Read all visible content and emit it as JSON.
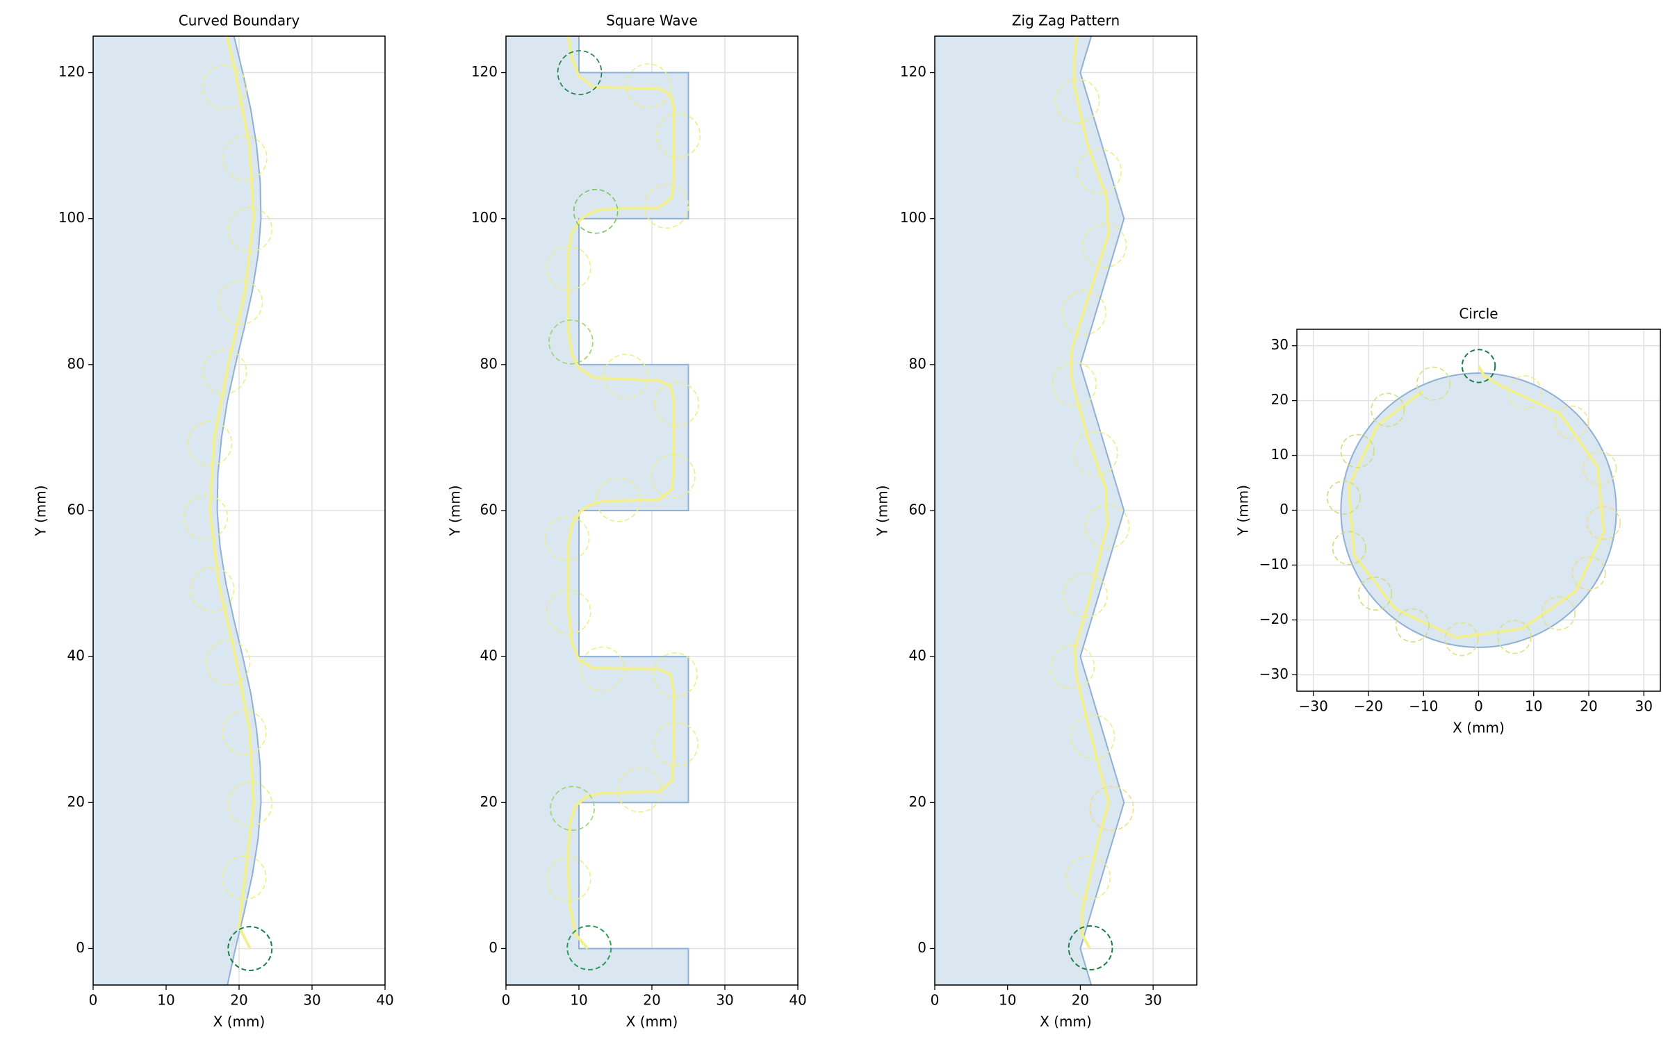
{
  "chart_data": [
    {
      "type": "toolpath",
      "title": "Curved Boundary",
      "x_label": "X (mm)",
      "y_label": "Y (mm)",
      "xlim": [
        0,
        40
      ],
      "ylim": [
        -5,
        125
      ],
      "xticks": [
        0,
        10,
        20,
        30,
        40
      ],
      "yticks": [
        0,
        20,
        40,
        60,
        80,
        100,
        120
      ],
      "grid": true,
      "boundary": {
        "color": "#dae6f0",
        "edge_color": "#8fb0d6",
        "x": [
          0,
          18.4,
          19.5,
          20.7,
          21.8,
          22.6,
          23.0,
          22.9,
          22.4,
          21.6,
          20.5,
          19.3,
          18.2,
          17.4,
          17.0,
          17.1,
          17.6,
          18.4,
          19.5,
          20.7,
          21.8,
          22.6,
          23.0,
          22.9,
          22.4,
          21.6,
          20.5,
          19.3,
          0
        ],
        "y": [
          -5,
          -5,
          0,
          5,
          10,
          15,
          20,
          25,
          30,
          35,
          40,
          45,
          50,
          55,
          60,
          65,
          70,
          75,
          80,
          85,
          90,
          95,
          100,
          105,
          110,
          115,
          120,
          125,
          125
        ]
      },
      "path": {
        "color": "#f2f08e",
        "x": [
          21.5,
          20.0,
          20.8,
          22.0,
          21.4,
          19.5,
          17.2,
          16.0,
          16.6,
          18.5,
          20.8,
          22.0,
          21.4,
          19.5,
          18.3
        ],
        "y": [
          0,
          3,
          10,
          20,
          30,
          40,
          50,
          60,
          70,
          80,
          90,
          100,
          110,
          120,
          125
        ]
      },
      "circles": {
        "r": 3,
        "x": [
          21.5,
          20.7,
          21.5,
          20.7,
          18.5,
          16.3,
          15.4,
          16.0,
          18.0,
          20.2,
          21.5,
          20.8,
          18.0
        ],
        "y": [
          0,
          9.7,
          19.8,
          29.6,
          39.2,
          49.2,
          59.1,
          69.2,
          79,
          88.5,
          98.5,
          108.3,
          118
        ],
        "colors": [
          "#1a7f46",
          "#eeee88",
          "#eeee88",
          "#eeee88",
          "#eeee88",
          "#eeee88",
          "#eeee88",
          "#eeee88",
          "#eeee88",
          "#eeee88",
          "#eeee88",
          "#eeee88",
          "#eeee88"
        ]
      }
    },
    {
      "type": "toolpath",
      "title": "Square Wave",
      "x_label": "X (mm)",
      "y_label": "Y (mm)",
      "xlim": [
        0,
        40
      ],
      "ylim": [
        -5,
        125
      ],
      "xticks": [
        0,
        10,
        20,
        30,
        40
      ],
      "yticks": [
        0,
        20,
        40,
        60,
        80,
        100,
        120
      ],
      "grid": true,
      "boundary": {
        "color": "#dae6f0",
        "edge_color": "#8fb0d6",
        "x": [
          0,
          25,
          25,
          10,
          10,
          25,
          25,
          10,
          10,
          25,
          25,
          10,
          10,
          25,
          25,
          10,
          10,
          0
        ],
        "y": [
          -5,
          -5,
          0,
          0,
          20,
          20,
          40,
          40,
          60,
          60,
          80,
          80,
          100,
          100,
          120,
          120,
          125,
          125
        ]
      },
      "path": {
        "color": "#f2f08e",
        "x": [
          11.2,
          9.5,
          8.7,
          8.5,
          8.7,
          9.5,
          11,
          13,
          21,
          22.8,
          23,
          23,
          22.6,
          21,
          12,
          10,
          9,
          8.5,
          8.5,
          9,
          10.3,
          12,
          13.5,
          21,
          22.8,
          23,
          23,
          22.6,
          21,
          12,
          10,
          9,
          8.5,
          8.5,
          9,
          10.3,
          12,
          13.5,
          21,
          22.8,
          23,
          23,
          22.6,
          21,
          12,
          10,
          9,
          8.5
        ],
        "y": [
          0,
          2,
          6,
          12,
          17,
          19.5,
          20.8,
          21.3,
          21.5,
          23,
          27,
          35,
          37.5,
          38.3,
          38.4,
          39.5,
          42,
          47,
          55,
          58,
          60,
          61,
          61.3,
          61.5,
          63,
          66,
          75,
          77,
          77.8,
          78.2,
          79.5,
          81.5,
          85,
          95,
          98,
          100,
          101,
          101.3,
          101.5,
          103,
          106,
          115,
          117,
          117.8,
          118,
          119.5,
          122,
          125
        ]
      },
      "circles": {
        "r": 3,
        "x": [
          11.4,
          8.6,
          9.1,
          18.3,
          23.3,
          23.2,
          13.2,
          8.6,
          8.4,
          15.4,
          22.9,
          23.4,
          16.4,
          8.9,
          8.6,
          22.0,
          12.3,
          23.6,
          19.5,
          10.1
        ],
        "y": [
          0.1,
          9.5,
          19.2,
          21.7,
          28,
          37.5,
          38.3,
          46.1,
          56.2,
          61.5,
          64.7,
          74.6,
          78.4,
          83.1,
          93.2,
          101.7,
          101,
          111.4,
          118.2,
          120
        ],
        "colors": [
          "#2a9d5c",
          "#eeee88",
          "#9ad46e",
          "#eeee88",
          "#eeee88",
          "#eeee88",
          "#eeee88",
          "#eeee88",
          "#eeee88",
          "#eeee88",
          "#eeee88",
          "#eeee88",
          "#eeee88",
          "#9ad46e",
          "#eeee88",
          "#eeee88",
          "#7cc45e",
          "#eeee88",
          "#eeee88",
          "#1a7f46"
        ]
      }
    },
    {
      "type": "toolpath",
      "title": "Zig Zag Pattern",
      "x_label": "X (mm)",
      "y_label": "Y (mm)",
      "xlim": [
        0,
        36
      ],
      "ylim": [
        -5,
        125
      ],
      "xticks": [
        0,
        10,
        20,
        30
      ],
      "yticks": [
        0,
        20,
        40,
        60,
        80,
        100,
        120
      ],
      "grid": true,
      "boundary": {
        "color": "#dae6f0",
        "edge_color": "#8fb0d6",
        "x": [
          0,
          21.5,
          20,
          26,
          20,
          26,
          20,
          26,
          20,
          21.5,
          0
        ],
        "y": [
          -5,
          -5,
          0,
          20,
          40,
          60,
          80,
          100,
          120,
          125,
          125
        ]
      },
      "path": {
        "color": "#f2f08e",
        "x": [
          21.3,
          20.2,
          20.2,
          22.5,
          23.9,
          22,
          19.5,
          19.2,
          21,
          23.7,
          23.5,
          21,
          18.8,
          18.8,
          21,
          23.9,
          23.6,
          21,
          19.2,
          19.2,
          19.5
        ],
        "y": [
          0,
          2,
          5,
          15,
          20,
          27,
          37,
          41,
          47,
          58,
          63,
          70,
          78,
          82,
          89,
          98,
          103,
          110,
          118,
          122,
          125
        ]
      },
      "circles": {
        "r": 3,
        "x": [
          21.4,
          21.1,
          24.3,
          21.7,
          18.9,
          20.7,
          23.7,
          22.1,
          19.2,
          20.5,
          23.3,
          22.6,
          19.6
        ],
        "y": [
          0.1,
          9.7,
          19.2,
          29,
          38.6,
          48.4,
          57.8,
          67.8,
          77.3,
          87.1,
          96.3,
          106.5,
          116.1
        ],
        "colors": [
          "#1a7f46",
          "#eeee88",
          "#f2dc88",
          "#eeee88",
          "#eeee88",
          "#eeee88",
          "#eeee88",
          "#eeee88",
          "#eeee88",
          "#eeee88",
          "#eeee88",
          "#eeee88",
          "#eeee88"
        ]
      }
    },
    {
      "type": "toolpath",
      "title": "Circle",
      "x_label": "X (mm)",
      "y_label": "Y (mm)",
      "xlim": [
        -33,
        33
      ],
      "ylim": [
        -33,
        33
      ],
      "xticks": [
        {
          "value": -30,
          "label": "−30"
        },
        {
          "value": -20,
          "label": "−20"
        },
        {
          "value": -10,
          "label": "−10"
        },
        0,
        10,
        20,
        30
      ],
      "yticks": [
        {
          "value": -30,
          "label": "−30"
        },
        {
          "value": -20,
          "label": "−20"
        },
        {
          "value": -10,
          "label": "−10"
        },
        0,
        10,
        20,
        30
      ],
      "grid": true,
      "boundary": {
        "color": "#dae6f0",
        "edge_color": "#8fb0d6",
        "x": 0,
        "y": 0,
        "r": 25
      },
      "path": {
        "color": "#f2f08e",
        "x": [
          0,
          1,
          4.0,
          14.8,
          21.6,
          22.7,
          17.6,
          7.9,
          -4.1,
          -15.1,
          -22.6,
          -23.6,
          -18.4,
          -10.2
        ],
        "y": [
          26.3,
          24.5,
          22.7,
          17.6,
          7.9,
          -4.0,
          -14.8,
          -21.6,
          -23.2,
          -18.0,
          -8.2,
          4.2,
          15.4,
          21.7
        ]
      },
      "circles": {
        "r": 3,
        "x": [
          0,
          8.4,
          16.9,
          22,
          22.7,
          20,
          14.5,
          6.5,
          -3.1,
          -12,
          -18.8,
          -23.5,
          -24.5,
          -22,
          -16.5,
          -8.2
        ],
        "y": [
          26.3,
          21.5,
          16,
          7.7,
          -2.3,
          -11.5,
          -18.8,
          -23.1,
          -23.5,
          -21,
          -15.2,
          -6.9,
          2.3,
          10.8,
          18.3,
          23.1
        ],
        "colors": [
          "#1a7f46",
          "#eeee88",
          "#f2e48a",
          "#f2e48a",
          "#f2dc88",
          "#f2dc88",
          "#e4e486",
          "#d8e27e",
          "#dde480",
          "#d3df7c",
          "#cfdd7a",
          "#cfdd7a",
          "#cfdd7a",
          "#cfdd7a",
          "#d3df7c",
          "#d8e27e"
        ]
      }
    }
  ]
}
